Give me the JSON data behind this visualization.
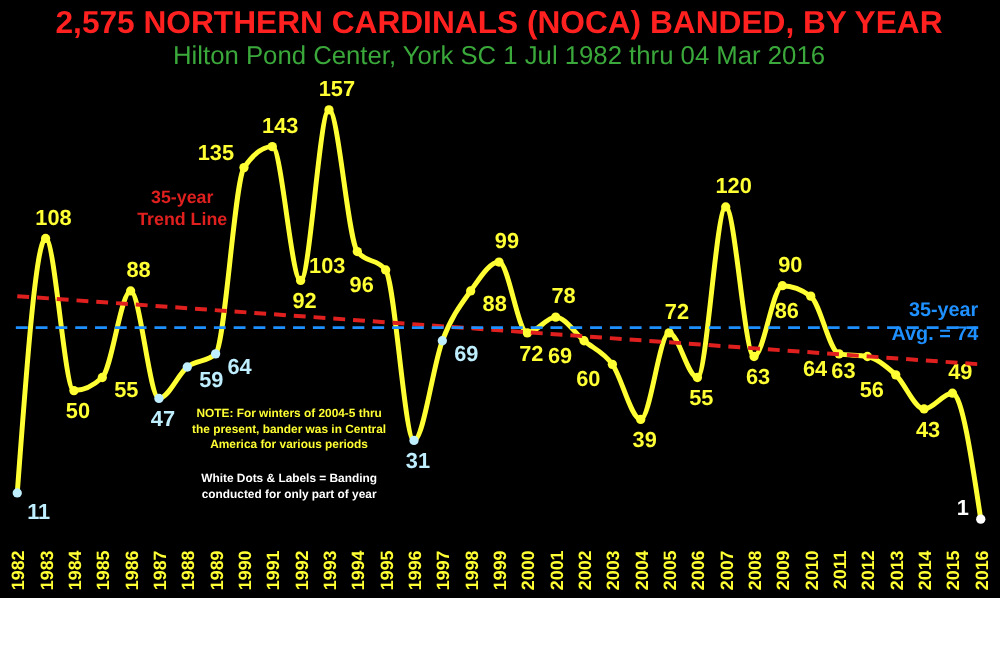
{
  "chart_data": {
    "type": "line",
    "title": "2,575 NORTHERN CARDINALS (NOCA) BANDED, BY YEAR",
    "subtitle": "Hilton Pond Center, York SC          1 Jul 1982 thru 04 Mar 2016",
    "categories": [
      "1982",
      "1983",
      "1984",
      "1985",
      "1986",
      "1987",
      "1988",
      "1989",
      "1990",
      "1991",
      "1992",
      "1993",
      "1994",
      "1995",
      "1996",
      "1997",
      "1998",
      "1999",
      "2000",
      "2001",
      "2002",
      "2003",
      "2004",
      "2005",
      "2006",
      "2007",
      "2008",
      "2009",
      "2010",
      "2011",
      "2012",
      "2013",
      "2014",
      "2015",
      "2016"
    ],
    "series": [
      {
        "color": "#ffff33",
        "marker": "circle",
        "values": [
          11,
          108,
          50,
          55,
          88,
          47,
          59,
          64,
          135,
          143,
          92,
          157,
          103,
          96,
          31,
          69,
          88,
          99,
          72,
          78,
          69,
          60,
          39,
          72,
          55,
          120,
          63,
          90,
          86,
          64,
          63,
          56,
          43,
          49,
          1
        ],
        "value_labels": [
          "11",
          "108",
          "50",
          "55",
          "88",
          "47",
          "59",
          "64",
          "135",
          "143",
          "92",
          "157",
          "103",
          "96",
          "31",
          "69",
          "88",
          "99",
          "72",
          "78",
          "69",
          "60",
          "39",
          "72",
          "55",
          "120",
          "63",
          "90",
          "86",
          "64",
          "63",
          "56",
          "43",
          "49",
          "1"
        ],
        "colors": [
          "#bfefff",
          "#ffff33",
          "#ffff33",
          "#ffff33",
          "#ffff33",
          "#bfefff",
          "#bfefff",
          "#bfefff",
          "#ffff33",
          "#ffff33",
          "#ffff33",
          "#ffff33",
          "#ffff33",
          "#ffff33",
          "#bfefff",
          "#bfefff",
          "#ffff33",
          "#ffff33",
          "#ffff33",
          "#ffff33",
          "#ffff33",
          "#ffff33",
          "#ffff33",
          "#ffff33",
          "#ffff33",
          "#ffff33",
          "#ffff33",
          "#ffff33",
          "#ffff33",
          "#ffff33",
          "#ffff33",
          "#ffff33",
          "#ffff33",
          "#ffff33",
          "#ffffff"
        ]
      },
      {
        "type": "line",
        "color": "#e0201f",
        "line_style": "dashed",
        "values": [
          86,
          null,
          null,
          null,
          null,
          null,
          null,
          null,
          null,
          null,
          null,
          null,
          null,
          null,
          null,
          null,
          null,
          null,
          null,
          null,
          null,
          null,
          null,
          null,
          null,
          null,
          null,
          null,
          null,
          null,
          null,
          null,
          null,
          null,
          60
        ]
      }
    ],
    "grid": false,
    "tick_labels": "x",
    "ref_lines": [
      {
        "axis": "y",
        "value": 74,
        "label": "35-year\nAvg. = 74",
        "color": "#1e90ff",
        "line_style": "dashed"
      }
    ],
    "annotations": [
      "35-year\nTrend Line",
      "NOTE: For winters of 2004-5 thru\nthe present, bander was in Central\nAmerica for various periods",
      "White Dots & Labels = Banding\nconducted for only part of year"
    ]
  }
}
